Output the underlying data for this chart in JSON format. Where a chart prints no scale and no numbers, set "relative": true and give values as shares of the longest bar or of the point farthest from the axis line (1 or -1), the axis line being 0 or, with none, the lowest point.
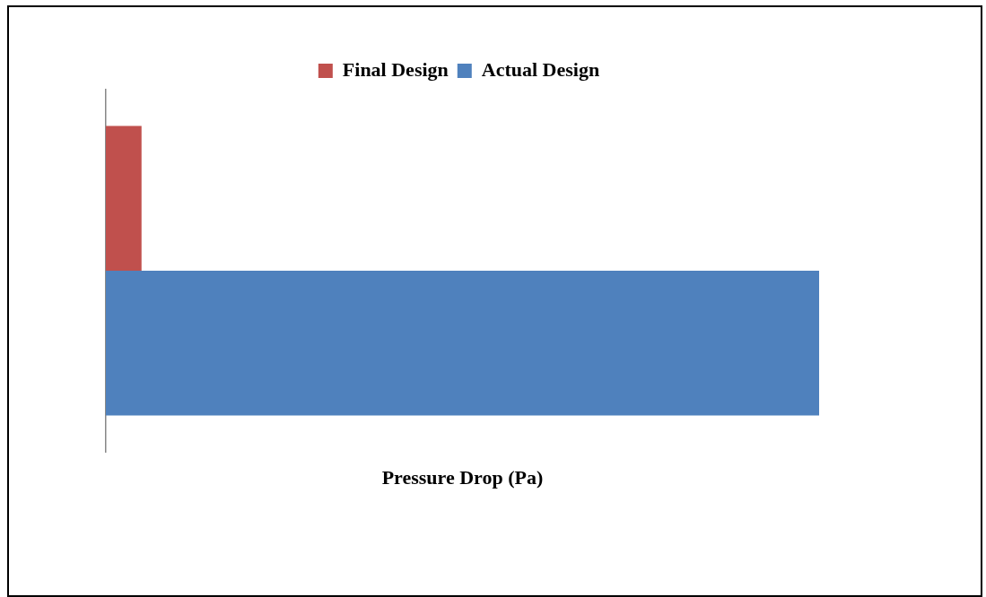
{
  "chart_data": {
    "type": "bar",
    "orientation": "horizontal",
    "relative": true,
    "xlabel": "Pressure Drop (Pa)",
    "categories": [
      null
    ],
    "legend": "top",
    "grid": false,
    "series": [
      {
        "name": "Final Design",
        "color": "#c0504d",
        "values": [
          0.05
        ]
      },
      {
        "name": "Actual Design",
        "color": "#4f81bd",
        "values": [
          1
        ]
      }
    ]
  }
}
